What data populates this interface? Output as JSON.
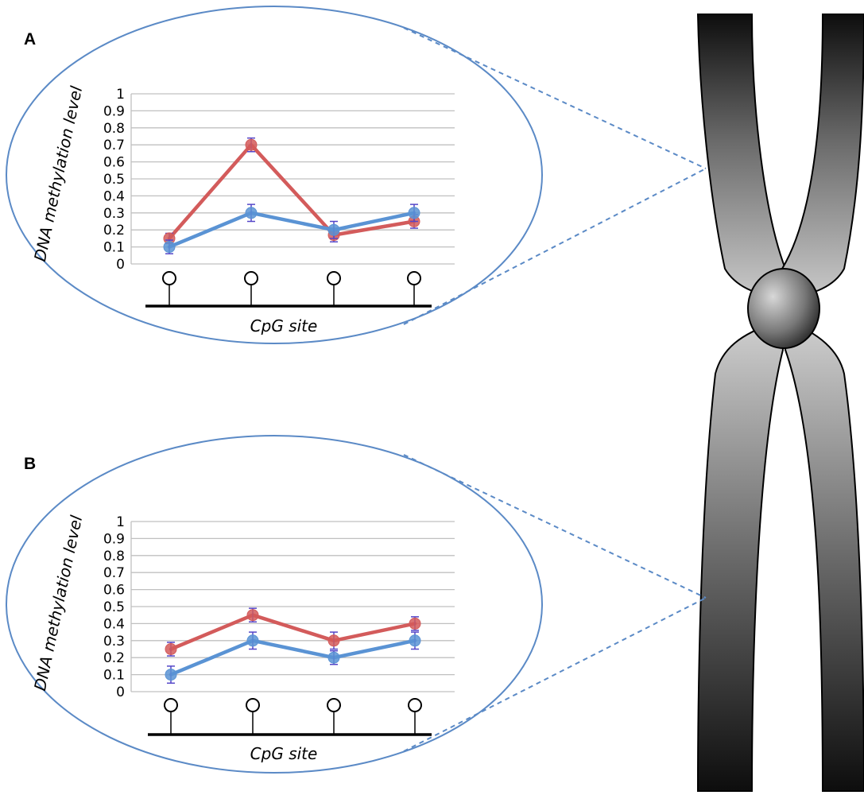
{
  "figure": {
    "colors": {
      "red_series": "#d35b5b",
      "blue_series": "#5a93d4",
      "error_bar": "#5546c8",
      "ellipse": "#5b8ac6",
      "gridline": "#c0c0c0"
    }
  },
  "chart_data": [
    {
      "type": "line",
      "panel": "A",
      "ylabel": "DNA methylation level",
      "xlabel": "CpG site",
      "categories": [
        "",
        "",
        "",
        ""
      ],
      "ylim": [
        0,
        1
      ],
      "yticks": [
        "0",
        "0.1",
        "0.2",
        "0.3",
        "0.4",
        "0.5",
        "0.6",
        "0.7",
        "0.8",
        "0.9",
        "1"
      ],
      "grid": true,
      "series": [
        {
          "color": "#d35b5b",
          "values": [
            0.15,
            0.7,
            0.17,
            0.25
          ],
          "errors": [
            0.03,
            0.04,
            0.04,
            0.04
          ]
        },
        {
          "color": "#5a93d4",
          "values": [
            0.1,
            0.3,
            0.2,
            0.3
          ],
          "errors": [
            0.04,
            0.05,
            0.05,
            0.05
          ]
        }
      ]
    },
    {
      "type": "line",
      "panel": "B",
      "ylabel": "DNA methylation level",
      "xlabel": "CpG site",
      "categories": [
        "",
        "",
        "",
        ""
      ],
      "ylim": [
        0,
        1
      ],
      "yticks": [
        "0",
        "0.1",
        "0.2",
        "0.3",
        "0.4",
        "0.5",
        "0.6",
        "0.7",
        "0.8",
        "0.9",
        "1"
      ],
      "grid": true,
      "series": [
        {
          "color": "#d35b5b",
          "values": [
            0.25,
            0.45,
            0.3,
            0.4
          ],
          "errors": [
            0.04,
            0.04,
            0.05,
            0.04
          ]
        },
        {
          "color": "#5a93d4",
          "values": [
            0.1,
            0.3,
            0.2,
            0.3
          ],
          "errors": [
            0.05,
            0.05,
            0.04,
            0.05
          ]
        }
      ]
    }
  ]
}
